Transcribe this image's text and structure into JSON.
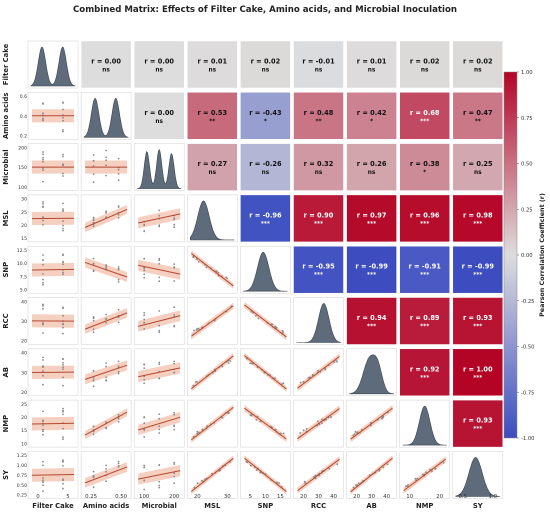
{
  "chart_data": {
    "type": "heatmap",
    "title": "Combined Matrix: Effects of Filter Cake, Amino acids, and Microbial Inoculation",
    "variables": [
      "Filter Cake",
      "Amino acids",
      "Microbial",
      "MSL",
      "SNP",
      "RCC",
      "AB",
      "NMP",
      "SY"
    ],
    "upper_triangle": [
      {
        "row": "Filter Cake",
        "col": "Amino acids",
        "r": "0.00",
        "sig": "ns",
        "value": 0.0
      },
      {
        "row": "Filter Cake",
        "col": "Microbial",
        "r": "0.00",
        "sig": "ns",
        "value": 0.0
      },
      {
        "row": "Filter Cake",
        "col": "MSL",
        "r": "0.01",
        "sig": "ns",
        "value": 0.01
      },
      {
        "row": "Filter Cake",
        "col": "SNP",
        "r": "0.02",
        "sig": "ns",
        "value": 0.02
      },
      {
        "row": "Filter Cake",
        "col": "RCC",
        "r": "-0.01",
        "sig": "ns",
        "value": -0.01
      },
      {
        "row": "Filter Cake",
        "col": "AB",
        "r": "0.01",
        "sig": "ns",
        "value": 0.01
      },
      {
        "row": "Filter Cake",
        "col": "NMP",
        "r": "0.02",
        "sig": "ns",
        "value": 0.02
      },
      {
        "row": "Filter Cake",
        "col": "SY",
        "r": "0.02",
        "sig": "ns",
        "value": 0.02
      },
      {
        "row": "Amino acids",
        "col": "Microbial",
        "r": "0.00",
        "sig": "ns",
        "value": 0.0
      },
      {
        "row": "Amino acids",
        "col": "MSL",
        "r": "0.53",
        "sig": "**",
        "value": 0.53
      },
      {
        "row": "Amino acids",
        "col": "SNP",
        "r": "-0.43",
        "sig": "*",
        "value": -0.43
      },
      {
        "row": "Amino acids",
        "col": "RCC",
        "r": "0.48",
        "sig": "**",
        "value": 0.48
      },
      {
        "row": "Amino acids",
        "col": "AB",
        "r": "0.42",
        "sig": "*",
        "value": 0.42
      },
      {
        "row": "Amino acids",
        "col": "NMP",
        "r": "0.68",
        "sig": "***",
        "value": 0.68
      },
      {
        "row": "Amino acids",
        "col": "SY",
        "r": "0.47",
        "sig": "**",
        "value": 0.47
      },
      {
        "row": "Microbial",
        "col": "MSL",
        "r": "0.27",
        "sig": "ns",
        "value": 0.27
      },
      {
        "row": "Microbial",
        "col": "SNP",
        "r": "-0.26",
        "sig": "ns",
        "value": -0.26
      },
      {
        "row": "Microbial",
        "col": "RCC",
        "r": "0.32",
        "sig": "ns",
        "value": 0.32
      },
      {
        "row": "Microbial",
        "col": "AB",
        "r": "0.26",
        "sig": "ns",
        "value": 0.26
      },
      {
        "row": "Microbial",
        "col": "NMP",
        "r": "0.38",
        "sig": "*",
        "value": 0.38
      },
      {
        "row": "Microbial",
        "col": "SY",
        "r": "0.25",
        "sig": "ns",
        "value": 0.25
      },
      {
        "row": "MSL",
        "col": "SNP",
        "r": "-0.96",
        "sig": "***",
        "value": -0.96
      },
      {
        "row": "MSL",
        "col": "RCC",
        "r": "0.90",
        "sig": "***",
        "value": 0.9
      },
      {
        "row": "MSL",
        "col": "AB",
        "r": "0.97",
        "sig": "***",
        "value": 0.97
      },
      {
        "row": "MSL",
        "col": "NMP",
        "r": "0.96",
        "sig": "***",
        "value": 0.96
      },
      {
        "row": "MSL",
        "col": "SY",
        "r": "0.98",
        "sig": "***",
        "value": 0.98
      },
      {
        "row": "SNP",
        "col": "RCC",
        "r": "-0.95",
        "sig": "***",
        "value": -0.95
      },
      {
        "row": "SNP",
        "col": "AB",
        "r": "-0.99",
        "sig": "***",
        "value": -0.99
      },
      {
        "row": "SNP",
        "col": "NMP",
        "r": "-0.91",
        "sig": "***",
        "value": -0.91
      },
      {
        "row": "SNP",
        "col": "SY",
        "r": "-0.99",
        "sig": "***",
        "value": -0.99
      },
      {
        "row": "RCC",
        "col": "AB",
        "r": "0.94",
        "sig": "***",
        "value": 0.94
      },
      {
        "row": "RCC",
        "col": "NMP",
        "r": "0.89",
        "sig": "***",
        "value": 0.89
      },
      {
        "row": "RCC",
        "col": "SY",
        "r": "0.93",
        "sig": "***",
        "value": 0.93
      },
      {
        "row": "AB",
        "col": "NMP",
        "r": "0.92",
        "sig": "***",
        "value": 0.92
      },
      {
        "row": "AB",
        "col": "SY",
        "r": "1.00",
        "sig": "***",
        "value": 1.0
      },
      {
        "row": "NMP",
        "col": "SY",
        "r": "0.93",
        "sig": "***",
        "value": 0.93
      }
    ],
    "diagonal": "density (KDE)",
    "lower_triangle": "scatter with regression line and confidence band",
    "x_ticks": {
      "Filter Cake": [
        "0",
        "5"
      ],
      "Amino acids": [
        "0.25",
        "0.50"
      ],
      "Microbial": [
        "100",
        "200"
      ],
      "MSL": [
        "20",
        "30"
      ],
      "SNP": [
        "5",
        "10",
        "15"
      ],
      "RCC": [
        "20",
        "30",
        "40"
      ],
      "AB": [
        "20",
        "30",
        "40"
      ],
      "NMP": [
        "10",
        "20"
      ],
      "SY": [
        "0.5",
        "1.0"
      ]
    },
    "y_ticks": {
      "Amino acids": [
        "0.6",
        "0.4",
        "0.2"
      ],
      "Microbial": [
        "200",
        "150",
        "100"
      ],
      "MSL": [
        "30",
        "25",
        "20",
        "15"
      ],
      "SNP": [
        "12.5",
        "10.0",
        "7.5",
        "5.0"
      ],
      "RCC": [
        "40",
        "30",
        "20"
      ],
      "AB": [
        "40",
        "30",
        "20"
      ],
      "NMP": [
        "25",
        "20",
        "15",
        "10"
      ],
      "SY": [
        "1.25",
        "1.00",
        "0.75",
        "0.50",
        "0.25"
      ]
    },
    "colorbar": {
      "label": "Pearson Correlation Coefficient (r)",
      "range": [
        -1.0,
        1.0
      ],
      "ticks": [
        "1.00",
        "0.75",
        "0.50",
        "0.25",
        "0.00",
        "-0.25",
        "-0.50",
        "-0.75",
        "-1.00"
      ]
    },
    "colors": {
      "density_fill": "#5d6b7a",
      "regression_line": "#b5472f",
      "ci_band": "#f2c4b2",
      "scatter_point": "#8a8a8a",
      "cmap_low": "#3b4cc0",
      "cmap_mid": "#dddddd",
      "cmap_high": "#b40426"
    }
  }
}
